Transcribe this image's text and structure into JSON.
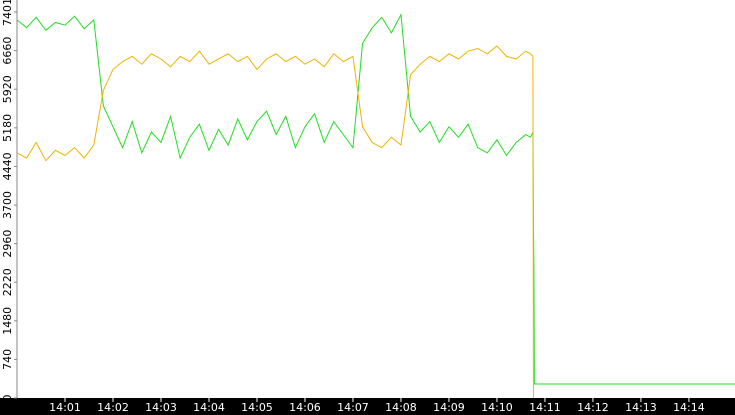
{
  "chart_data": {
    "type": "line",
    "x": [
      0,
      0.2,
      0.4,
      0.6,
      0.8,
      1,
      1.2,
      1.4,
      1.6,
      1.8,
      2,
      2.2,
      2.4,
      2.6,
      2.8,
      3,
      3.2,
      3.4,
      3.6,
      3.8,
      4,
      4.2,
      4.4,
      4.6,
      4.8,
      5,
      5.2,
      5.4,
      5.6,
      5.8,
      6,
      6.2,
      6.4,
      6.6,
      6.8,
      7,
      7.2,
      7.4,
      7.6,
      7.8,
      8,
      8.2,
      8.4,
      8.6,
      8.8,
      9,
      9.2,
      9.4,
      9.6,
      9.8,
      10,
      10.2,
      10.4,
      10.6,
      10.7,
      10.75,
      10.76,
      10.77,
      10.78,
      14.96
    ],
    "series": [
      {
        "color": "#22dd22",
        "values": [
          7250,
          7100,
          7300,
          7050,
          7200,
          7150,
          7320,
          7080,
          7250,
          5600,
          5200,
          4800,
          5300,
          4700,
          5100,
          4900,
          5400,
          4600,
          5000,
          5250,
          4750,
          5150,
          4850,
          5350,
          4950,
          5300,
          5500,
          5050,
          5400,
          4800,
          5200,
          5450,
          4900,
          5300,
          5050,
          4800,
          6800,
          7100,
          7300,
          7000,
          7350,
          5400,
          5100,
          5300,
          4900,
          5200,
          5000,
          5250,
          4800,
          4700,
          4950,
          4650,
          4900,
          5050,
          5000,
          5100,
          3400,
          2500,
          268,
          268
        ]
      },
      {
        "color": "#f0b400",
        "values": [
          4700,
          4600,
          4900,
          4550,
          4750,
          4650,
          4800,
          4600,
          4850,
          5900,
          6300,
          6450,
          6550,
          6400,
          6600,
          6500,
          6350,
          6550,
          6450,
          6650,
          6400,
          6500,
          6600,
          6450,
          6550,
          6300,
          6500,
          6600,
          6450,
          6550,
          6400,
          6500,
          6350,
          6600,
          6450,
          6550,
          5200,
          4900,
          4800,
          5000,
          4850,
          6200,
          6400,
          6550,
          6450,
          6600,
          6500,
          6650,
          6700,
          6600,
          6750,
          6550,
          6500,
          6650,
          6600,
          6550,
          0,
          null,
          null,
          null
        ]
      }
    ],
    "xlim": [
      0,
      14.96
    ],
    "xticks": [
      {
        "value": 1,
        "label": "14:01"
      },
      {
        "value": 2,
        "label": "14:02"
      },
      {
        "value": 3,
        "label": "14:03"
      },
      {
        "value": 4,
        "label": "14:04"
      },
      {
        "value": 5,
        "label": "14:05"
      },
      {
        "value": 6,
        "label": "14:06"
      },
      {
        "value": 7,
        "label": "14:07"
      },
      {
        "value": 8,
        "label": "14:08"
      },
      {
        "value": 9,
        "label": "14:09"
      },
      {
        "value": 10,
        "label": "14:10"
      },
      {
        "value": 11,
        "label": "14:11"
      },
      {
        "value": 12,
        "label": "14:12"
      },
      {
        "value": 13,
        "label": "14:13"
      },
      {
        "value": 14,
        "label": "14:14"
      }
    ],
    "ylim": [
      0,
      7401
    ],
    "yticks": [
      0,
      740,
      1480,
      2220,
      2960,
      3700,
      4440,
      5180,
      5920,
      6660,
      7401
    ]
  }
}
